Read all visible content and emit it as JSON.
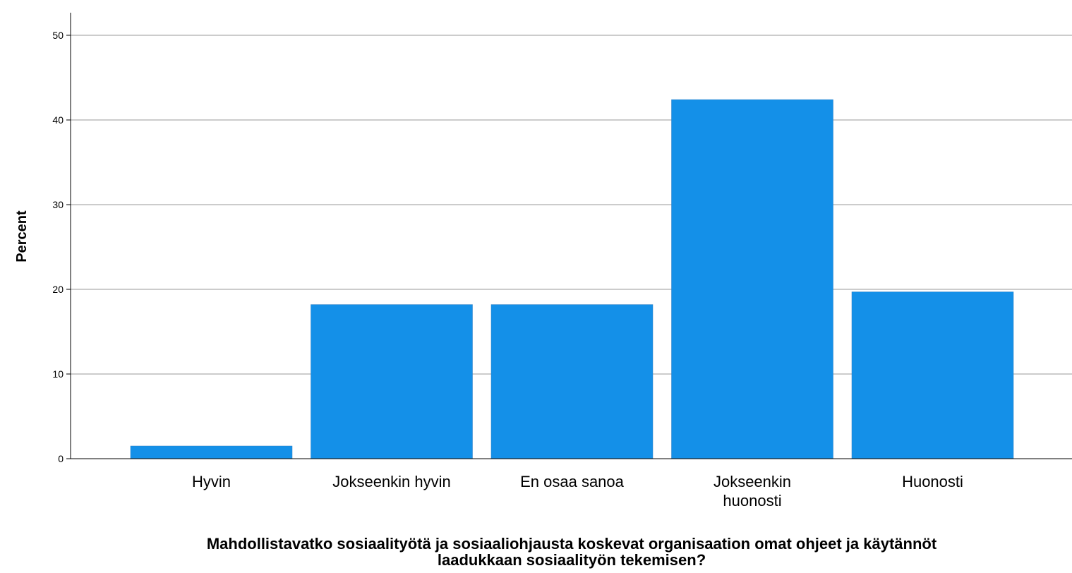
{
  "chart_data": {
    "type": "bar",
    "title": "",
    "xlabel": "Mahdollistavatko sosiaalityötä ja sosiaaliohjausta koskevat organisaation omat ohjeet ja käytännöt laadukkaan sosiaalityön tekemisen?",
    "xlabel_lines": [
      "Mahdollistavatko sosiaalityötä ja sosiaaliohjausta koskevat organisaation omat ohjeet ja käytännöt",
      "laadukkaan sosiaalityön tekemisen?"
    ],
    "ylabel": "Percent",
    "categories": [
      "Hyvin",
      "Jokseenkin hyvin",
      "En osaa sanoa",
      "Jokseenkin huonosti",
      "Huonosti"
    ],
    "category_lines": [
      [
        "Hyvin"
      ],
      [
        "Jokseenkin hyvin"
      ],
      [
        "En osaa sanoa"
      ],
      [
        "Jokseenkin",
        "huonosti"
      ],
      [
        "Huonosti"
      ]
    ],
    "values": [
      1.5,
      18.2,
      18.2,
      42.4,
      19.7
    ],
    "ylim": [
      0,
      52
    ],
    "yticks": [
      0,
      10,
      20,
      30,
      40,
      50
    ],
    "grid": true,
    "bar_color": "#1490e8",
    "grid_color": "#cccccc"
  }
}
